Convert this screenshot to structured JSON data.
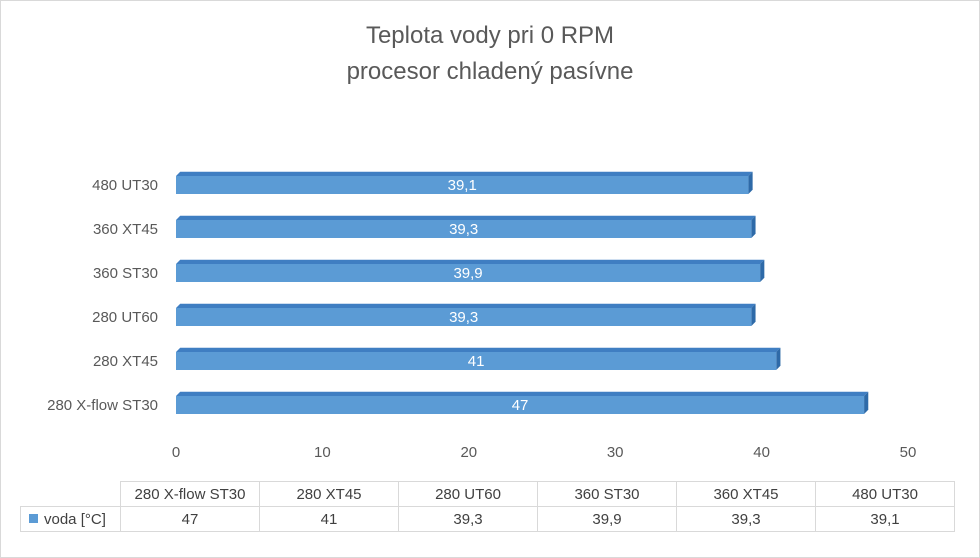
{
  "chart_data": {
    "type": "bar",
    "orientation": "horizontal",
    "title": "Teplota vody pri 0 RPM",
    "subtitle": "procesor chladený pasívne",
    "categories": [
      "280 X-flow ST30",
      "280 XT45",
      "280 UT60",
      "360 ST30",
      "360 XT45",
      "480 UT30"
    ],
    "series": [
      {
        "name": "voda [°C]",
        "values": [
          47,
          41,
          39.3,
          39.9,
          39.3,
          39.1
        ],
        "value_labels": [
          "47",
          "41",
          "39,3",
          "39,9",
          "39,3",
          "39,1"
        ],
        "color": "#5b9bd5"
      }
    ],
    "x_ticks": [
      "0",
      "10",
      "20",
      "30",
      "40",
      "50"
    ],
    "xlim": [
      0,
      50
    ],
    "xlabel": "",
    "ylabel": "",
    "grid": false,
    "legend": "data-table",
    "data_table": true,
    "colors": {
      "bar_front": "#5b9bd5",
      "bar_top": "#3f7ec2",
      "bar_side": "#2e6aa8",
      "text": "#595959",
      "border": "#d9d9d9"
    }
  }
}
